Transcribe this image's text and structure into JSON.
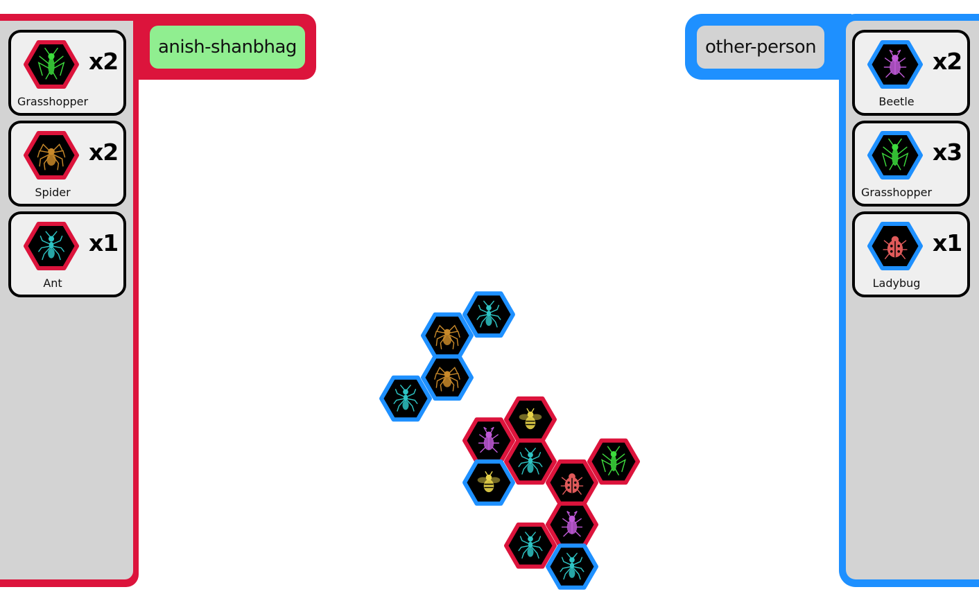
{
  "colors": {
    "player1": "#dc143c",
    "player2": "#1e90ff",
    "panel_bg": "#d3d3d3",
    "player1_name_bg": "#90ee90",
    "player2_name_bg": "#d3d3d3",
    "tile_fill": "#000000"
  },
  "player1": {
    "name": "anish-shanbhag",
    "hand": [
      {
        "piece": "grasshopper-icon",
        "label": "Grasshopper",
        "count": "x2"
      },
      {
        "piece": "spider-icon",
        "label": "Spider",
        "count": "x2"
      },
      {
        "piece": "ant-icon",
        "label": "Ant",
        "count": "x1"
      }
    ]
  },
  "player2": {
    "name": "other-person",
    "hand": [
      {
        "piece": "beetle-icon",
        "label": "Beetle",
        "count": "x2"
      },
      {
        "piece": "grasshopper-icon",
        "label": "Grasshopper",
        "count": "x3"
      },
      {
        "piece": "ladybug-icon",
        "label": "Ladybug",
        "count": "x1"
      }
    ]
  },
  "board": {
    "tiles": [
      {
        "q": 2,
        "r": -3,
        "owner": "player2",
        "piece": "ant"
      },
      {
        "q": 1,
        "r": -2,
        "owner": "player2",
        "piece": "spider"
      },
      {
        "q": 1,
        "r": -1,
        "owner": "player2",
        "piece": "spider"
      },
      {
        "q": 0,
        "r": 0,
        "owner": "player2",
        "piece": "ant"
      },
      {
        "q": 2,
        "r": 0,
        "owner": "player1",
        "piece": "beetle"
      },
      {
        "q": 3,
        "r": -1,
        "owner": "player1",
        "piece": "bee"
      },
      {
        "q": 3,
        "r": 0,
        "owner": "player1",
        "piece": "ant"
      },
      {
        "q": 2,
        "r": 1,
        "owner": "player2",
        "piece": "bee"
      },
      {
        "q": 4,
        "r": 0,
        "owner": "player1",
        "piece": "ladybug"
      },
      {
        "q": 5,
        "r": -1,
        "owner": "player1",
        "piece": "grasshopper"
      },
      {
        "q": 4,
        "r": 1,
        "owner": "player1",
        "piece": "beetle"
      },
      {
        "q": 3,
        "r": 2,
        "owner": "player1",
        "piece": "ant"
      },
      {
        "q": 4,
        "r": 2,
        "owner": "player2",
        "piece": "ant"
      }
    ]
  }
}
